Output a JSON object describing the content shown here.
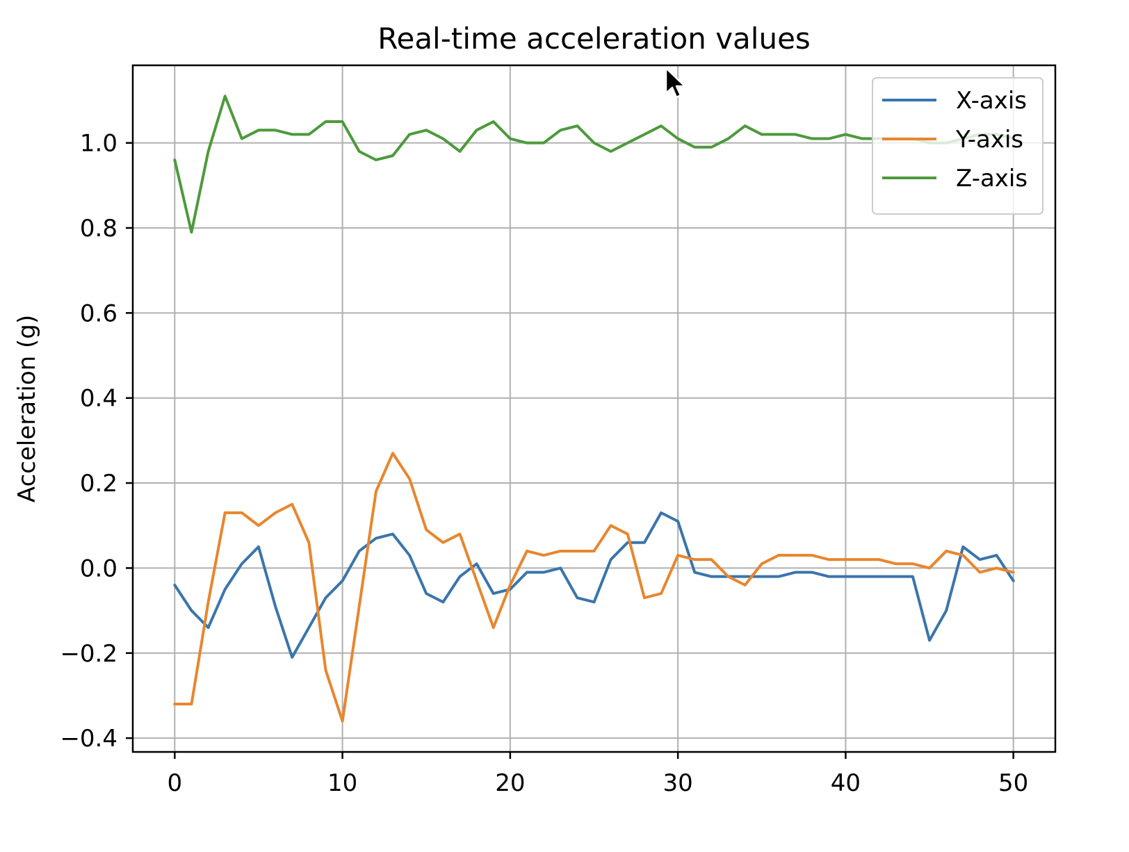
{
  "chart_data": {
    "type": "line",
    "title": "Real-time acceleration values",
    "xlabel": "",
    "ylabel": "Acceleration (g)",
    "xlim": [
      -2.5,
      52.5
    ],
    "ylim": [
      -0.4325,
      1.1825
    ],
    "grid": true,
    "legend_position": "top-right",
    "x_ticks": [
      0,
      10,
      20,
      30,
      40,
      50
    ],
    "x_tick_labels": [
      "0",
      "10",
      "20",
      "30",
      "40",
      "50"
    ],
    "y_ticks": [
      -0.4,
      -0.2,
      0.0,
      0.2,
      0.4,
      0.6,
      0.8,
      1.0
    ],
    "y_tick_labels": [
      "−0.4",
      "−0.2",
      "0.0",
      "0.2",
      "0.4",
      "0.6",
      "0.8",
      "1.0"
    ],
    "x": [
      0,
      1,
      2,
      3,
      4,
      5,
      6,
      7,
      8,
      9,
      10,
      11,
      12,
      13,
      14,
      15,
      16,
      17,
      18,
      19,
      20,
      21,
      22,
      23,
      24,
      25,
      26,
      27,
      28,
      29,
      30,
      31,
      32,
      33,
      34,
      35,
      36,
      37,
      38,
      39,
      40,
      41,
      42,
      43,
      44,
      45,
      46,
      47,
      48,
      49,
      50
    ],
    "series": [
      {
        "name": "X-axis",
        "color": "#3a75ab",
        "values": [
          -0.04,
          -0.1,
          -0.14,
          -0.05,
          0.01,
          0.05,
          -0.09,
          -0.21,
          -0.14,
          -0.07,
          -0.03,
          0.04,
          0.07,
          0.08,
          0.03,
          -0.06,
          -0.08,
          -0.02,
          0.01,
          -0.06,
          -0.05,
          -0.01,
          -0.01,
          0.0,
          -0.07,
          -0.08,
          0.02,
          0.06,
          0.06,
          0.13,
          0.11,
          -0.01,
          -0.02,
          -0.02,
          -0.02,
          -0.02,
          -0.02,
          -0.01,
          -0.01,
          -0.02,
          -0.02,
          -0.02,
          -0.02,
          -0.02,
          -0.02,
          -0.17,
          -0.1,
          0.05,
          0.02,
          0.03,
          -0.03
        ]
      },
      {
        "name": "Y-axis",
        "color": "#e8862e",
        "values": [
          -0.32,
          -0.32,
          -0.08,
          0.13,
          0.13,
          0.1,
          0.13,
          0.15,
          0.06,
          -0.24,
          -0.36,
          -0.09,
          0.18,
          0.27,
          0.21,
          0.09,
          0.06,
          0.08,
          -0.03,
          -0.14,
          -0.04,
          0.04,
          0.03,
          0.04,
          0.04,
          0.04,
          0.1,
          0.08,
          -0.07,
          -0.06,
          0.03,
          0.02,
          0.02,
          -0.02,
          -0.04,
          0.01,
          0.03,
          0.03,
          0.03,
          0.02,
          0.02,
          0.02,
          0.02,
          0.01,
          0.01,
          0.0,
          0.04,
          0.03,
          -0.01,
          0.0,
          -0.01
        ]
      },
      {
        "name": "Z-axis",
        "color": "#4d9a3c",
        "values": [
          0.96,
          0.79,
          0.98,
          1.11,
          1.01,
          1.03,
          1.03,
          1.02,
          1.02,
          1.05,
          1.05,
          0.98,
          0.96,
          0.97,
          1.02,
          1.03,
          1.01,
          0.98,
          1.03,
          1.05,
          1.01,
          1.0,
          1.0,
          1.03,
          1.04,
          1.0,
          0.98,
          1.0,
          1.02,
          1.04,
          1.01,
          0.99,
          0.99,
          1.01,
          1.04,
          1.02,
          1.02,
          1.02,
          1.01,
          1.01,
          1.02,
          1.01,
          1.01,
          1.01,
          1.01,
          1.0,
          1.0,
          1.01,
          1.02,
          1.02,
          1.01
        ]
      }
    ]
  },
  "cursor_icon": "mouse-pointer-icon"
}
